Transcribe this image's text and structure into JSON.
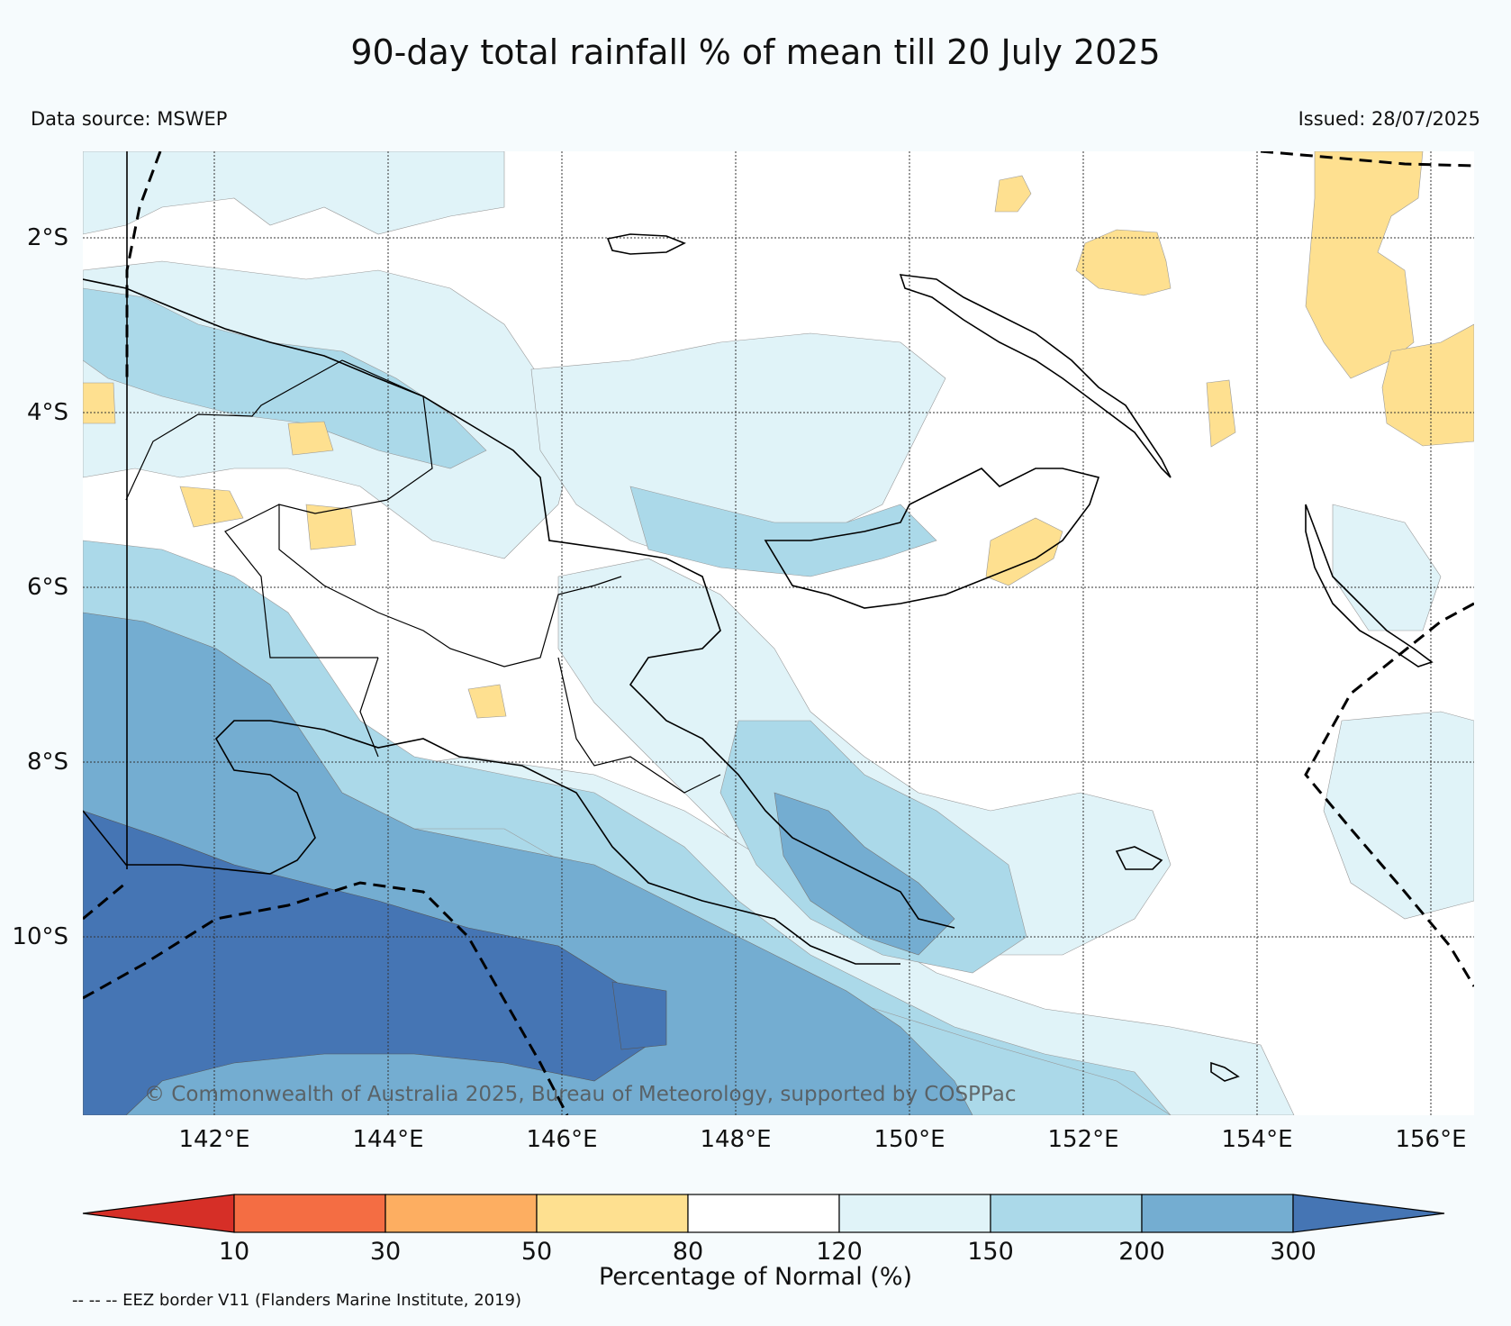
{
  "title": "90-day total rainfall % of mean till 20 July 2025",
  "data_source": "Data source: MSWEP",
  "issued": "Issued: 28/07/2025",
  "copyright": "© Commonwealth of Australia 2025, Bureau of Meteorology, supported by COSPPac",
  "lat_labels": [
    "2°S",
    "4°S",
    "6°S",
    "8°S",
    "10°S"
  ],
  "lon_labels": [
    "142°E",
    "144°E",
    "146°E",
    "148°E",
    "150°E",
    "152°E",
    "154°E",
    "156°E"
  ],
  "colorbar": {
    "title": "Percentage of Normal (%)",
    "tick_labels": [
      "10",
      "30",
      "50",
      "80",
      "120",
      "150",
      "200",
      "300"
    ],
    "colors": [
      "#d62f27",
      "#f46d43",
      "#fdae61",
      "#fee090",
      "#ffffff",
      "#e0f3f8",
      "#abd9e9",
      "#74add1",
      "#4575b4"
    ]
  },
  "eez_note": "-- -- -- EEZ border V11 (Flanders Marine Institute, 2019)"
}
